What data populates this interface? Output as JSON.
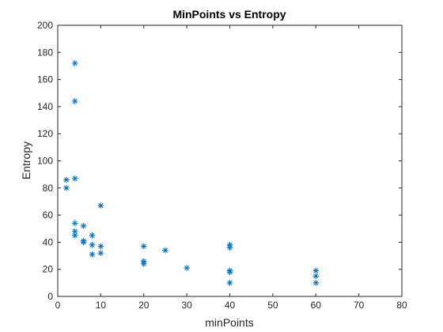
{
  "chart_data": {
    "type": "scatter",
    "title": "MinPoints vs Entropy",
    "xlabel": "minPoints",
    "ylabel": "Entropy",
    "xlim": [
      0,
      80
    ],
    "ylim": [
      0,
      200
    ],
    "xticks": [
      "0",
      "10",
      "20",
      "30",
      "40",
      "50",
      "60",
      "70",
      "80"
    ],
    "yticks": [
      "0",
      "20",
      "40",
      "60",
      "80",
      "100",
      "120",
      "140",
      "160",
      "180",
      "200"
    ],
    "grid": false,
    "marker": "asterisk",
    "marker_color": "#0072BD",
    "axes_color": "#262626",
    "series": [
      {
        "x": [
          2,
          2,
          4,
          4,
          4,
          4,
          4,
          4,
          6,
          6,
          6,
          8,
          8,
          8,
          10,
          10,
          10,
          20,
          20,
          20,
          25,
          30,
          40,
          40,
          40,
          40,
          40,
          60,
          60,
          60
        ],
        "y": [
          86,
          80,
          172,
          144,
          87,
          54,
          48,
          45,
          52,
          41,
          40,
          45,
          38,
          31,
          67,
          37,
          32,
          37,
          26,
          24,
          34,
          21,
          38,
          36,
          19,
          18,
          10,
          19,
          15,
          10
        ]
      }
    ]
  }
}
